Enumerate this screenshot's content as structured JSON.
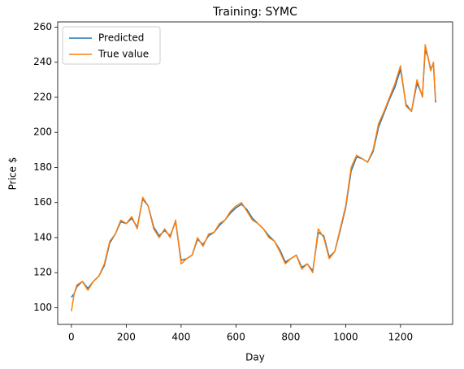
{
  "chart_data": {
    "type": "line",
    "title": "Training: SYMC",
    "xlabel": "Day",
    "ylabel": "Price $",
    "x": [
      0,
      10,
      20,
      40,
      60,
      80,
      100,
      120,
      140,
      160,
      180,
      200,
      220,
      240,
      260,
      280,
      300,
      320,
      340,
      360,
      380,
      400,
      420,
      440,
      460,
      480,
      500,
      520,
      540,
      560,
      580,
      600,
      620,
      640,
      660,
      680,
      700,
      720,
      740,
      760,
      780,
      800,
      820,
      840,
      860,
      880,
      900,
      920,
      940,
      960,
      980,
      1000,
      1020,
      1040,
      1060,
      1080,
      1100,
      1120,
      1140,
      1160,
      1180,
      1200,
      1220,
      1240,
      1260,
      1280,
      1290,
      1300,
      1310,
      1320,
      1328
    ],
    "series": [
      {
        "name": "Predicted",
        "color": "#1f77b4",
        "values": [
          106,
          108,
          112,
          115,
          111,
          115,
          118,
          124,
          137,
          142,
          149,
          148,
          151,
          146,
          162,
          158,
          146,
          141,
          144,
          141,
          149,
          127,
          128,
          130,
          139,
          136,
          141,
          143,
          147,
          150,
          154,
          157,
          159,
          156,
          151,
          148,
          145,
          141,
          138,
          133,
          126,
          128,
          130,
          123,
          125,
          121,
          143,
          141,
          129,
          132,
          144,
          157,
          178,
          186,
          185,
          183,
          189,
          203,
          211,
          219,
          226,
          236,
          216,
          212,
          228,
          221,
          247,
          243,
          236,
          239,
          217
        ]
      },
      {
        "name": "True value",
        "color": "#ff7f0e",
        "values": [
          98,
          108,
          113,
          115,
          110,
          115,
          118,
          125,
          138,
          142,
          150,
          148,
          152,
          145,
          163,
          158,
          145,
          140,
          145,
          140,
          150,
          125,
          128,
          130,
          140,
          135,
          142,
          143,
          148,
          150,
          155,
          158,
          160,
          155,
          150,
          148,
          145,
          140,
          138,
          132,
          125,
          128,
          130,
          122,
          125,
          120,
          145,
          140,
          128,
          132,
          145,
          158,
          180,
          187,
          185,
          183,
          190,
          205,
          212,
          220,
          228,
          238,
          215,
          212,
          230,
          220,
          250,
          243,
          235,
          240,
          218
        ]
      }
    ],
    "xlim": [
      -50,
      1390
    ],
    "ylim": [
      90.5,
      263
    ],
    "xticks": [
      0,
      200,
      400,
      600,
      800,
      1000,
      1200
    ],
    "yticks": [
      100,
      120,
      140,
      160,
      180,
      200,
      220,
      240,
      260
    ],
    "legend": "upper left"
  }
}
